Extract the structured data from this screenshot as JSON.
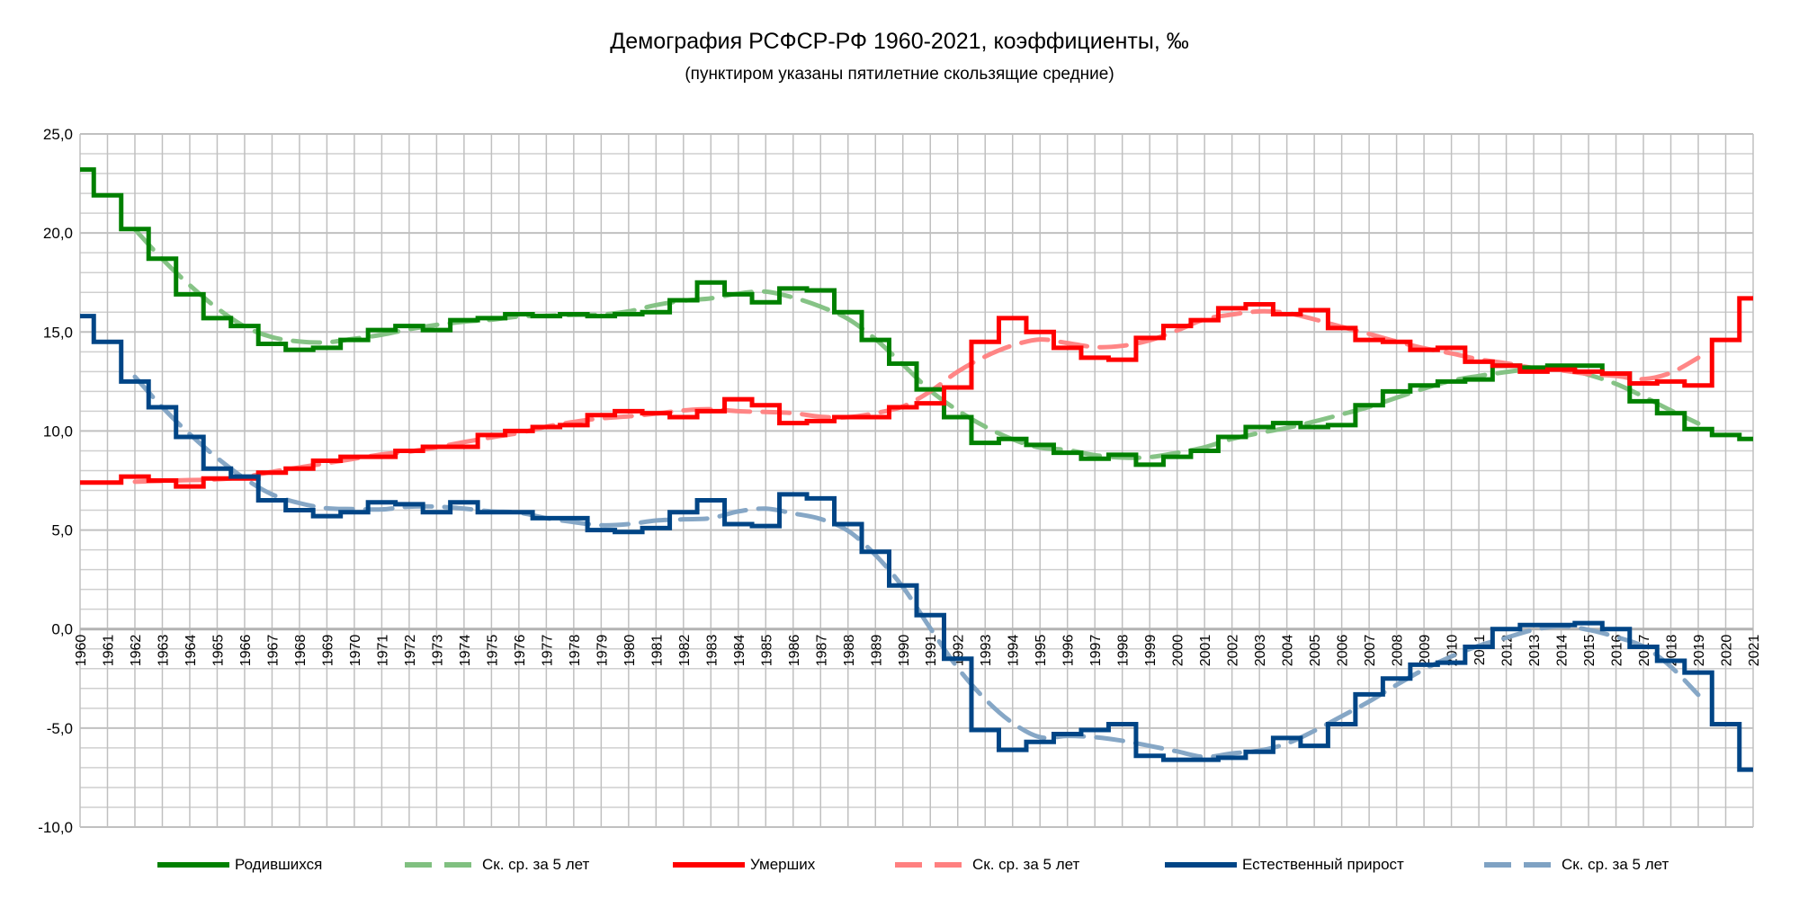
{
  "title": "Демография РСФСР-РФ 1960-2021, коэффициенты, ‰",
  "subtitle": "(пунктиром указаны пятилетние скользящие средние)",
  "colors": {
    "births": "#008000",
    "births_ma": "#80c080",
    "deaths": "#ff0000",
    "deaths_ma": "#ff8080",
    "natural": "#004586",
    "natural_ma": "#7fa2c3",
    "grid": "#c0c0c0"
  },
  "chart_data": {
    "type": "line",
    "title": "Демография РСФСР-РФ 1960-2021, коэффициенты, ‰",
    "xlabel": "",
    "ylabel": "",
    "ylim": [
      -10,
      25
    ],
    "y_ticks": [
      "25,0",
      "20,0",
      "15,0",
      "10,0",
      "5,0",
      "0,0",
      "-5,0",
      "-10,0"
    ],
    "y_tick_values": [
      25,
      20,
      15,
      10,
      5,
      0,
      -5,
      -10
    ],
    "grid": true,
    "legend_position": "bottom",
    "moving_average_window": 5,
    "x": [
      1960,
      1961,
      1962,
      1963,
      1964,
      1965,
      1966,
      1967,
      1968,
      1969,
      1970,
      1971,
      1972,
      1973,
      1974,
      1975,
      1976,
      1977,
      1978,
      1979,
      1980,
      1981,
      1982,
      1983,
      1984,
      1985,
      1986,
      1987,
      1988,
      1989,
      1990,
      1991,
      1992,
      1993,
      1994,
      1995,
      1996,
      1997,
      1998,
      1999,
      2000,
      2001,
      2002,
      2003,
      2004,
      2005,
      2006,
      2007,
      2008,
      2009,
      2010,
      2011,
      2012,
      2013,
      2014,
      2015,
      2016,
      2017,
      2018,
      2019,
      2020,
      2021
    ],
    "series": [
      {
        "name": "Родившихся",
        "style": "step",
        "color_key": "births",
        "values": [
          23.2,
          21.9,
          20.2,
          18.7,
          16.9,
          15.7,
          15.3,
          14.4,
          14.1,
          14.2,
          14.6,
          15.1,
          15.3,
          15.1,
          15.6,
          15.7,
          15.9,
          15.8,
          15.9,
          15.8,
          15.9,
          16.0,
          16.6,
          17.5,
          16.9,
          16.5,
          17.2,
          17.1,
          16.0,
          14.6,
          13.4,
          12.1,
          10.7,
          9.4,
          9.6,
          9.3,
          8.9,
          8.6,
          8.8,
          8.3,
          8.7,
          9.0,
          9.7,
          10.2,
          10.4,
          10.2,
          10.3,
          11.3,
          12.0,
          12.3,
          12.5,
          12.6,
          13.3,
          13.2,
          13.3,
          13.3,
          12.9,
          11.5,
          10.9,
          10.1,
          9.8,
          9.6
        ]
      },
      {
        "name": "Ск. ср. за 5 лет",
        "style": "moving-average",
        "of": 0,
        "color_key": "births_ma"
      },
      {
        "name": "Умерших",
        "style": "step",
        "color_key": "deaths",
        "values": [
          7.4,
          7.4,
          7.7,
          7.5,
          7.2,
          7.6,
          7.6,
          7.9,
          8.1,
          8.5,
          8.7,
          8.7,
          9.0,
          9.2,
          9.2,
          9.8,
          10.0,
          10.2,
          10.3,
          10.8,
          11.0,
          10.9,
          10.7,
          11.0,
          11.6,
          11.3,
          10.4,
          10.5,
          10.7,
          10.7,
          11.2,
          11.4,
          12.2,
          14.5,
          15.7,
          15.0,
          14.2,
          13.7,
          13.6,
          14.7,
          15.3,
          15.6,
          16.2,
          16.4,
          15.9,
          16.1,
          15.2,
          14.6,
          14.5,
          14.1,
          14.2,
          13.5,
          13.3,
          13.0,
          13.1,
          13.0,
          12.9,
          12.4,
          12.5,
          12.3,
          14.6,
          16.7
        ]
      },
      {
        "name": "Ск. ср. за 5 лет",
        "style": "moving-average",
        "of": 2,
        "color_key": "deaths_ma"
      },
      {
        "name": "Естественный прирост",
        "style": "step",
        "color_key": "natural",
        "values": [
          15.8,
          14.5,
          12.5,
          11.2,
          9.7,
          8.1,
          7.7,
          6.5,
          6.0,
          5.7,
          5.9,
          6.4,
          6.3,
          5.9,
          6.4,
          5.9,
          5.9,
          5.6,
          5.6,
          5.0,
          4.9,
          5.1,
          5.9,
          6.5,
          5.3,
          5.2,
          6.8,
          6.6,
          5.3,
          3.9,
          2.2,
          0.7,
          -1.5,
          -5.1,
          -6.1,
          -5.7,
          -5.3,
          -5.1,
          -4.8,
          -6.4,
          -6.6,
          -6.6,
          -6.5,
          -6.2,
          -5.5,
          -5.9,
          -4.8,
          -3.3,
          -2.5,
          -1.8,
          -1.7,
          -0.9,
          0.0,
          0.2,
          0.2,
          0.3,
          0.0,
          -0.9,
          -1.6,
          -2.2,
          -4.8,
          -7.1
        ]
      },
      {
        "name": "Ск. ср. за 5 лет",
        "style": "moving-average",
        "of": 4,
        "color_key": "natural_ma"
      }
    ]
  },
  "legend": [
    {
      "label": "Родившихся",
      "color_key": "births",
      "dashed": false
    },
    {
      "label": "Ск. ср. за 5 лет",
      "color_key": "births_ma",
      "dashed": true
    },
    {
      "label": "Умерших",
      "color_key": "deaths",
      "dashed": false
    },
    {
      "label": "Ск. ср. за 5 лет",
      "color_key": "deaths_ma",
      "dashed": true
    },
    {
      "label": "Естественный прирост",
      "color_key": "natural",
      "dashed": false
    },
    {
      "label": "Ск. ср. за 5 лет",
      "color_key": "natural_ma",
      "dashed": true
    }
  ]
}
